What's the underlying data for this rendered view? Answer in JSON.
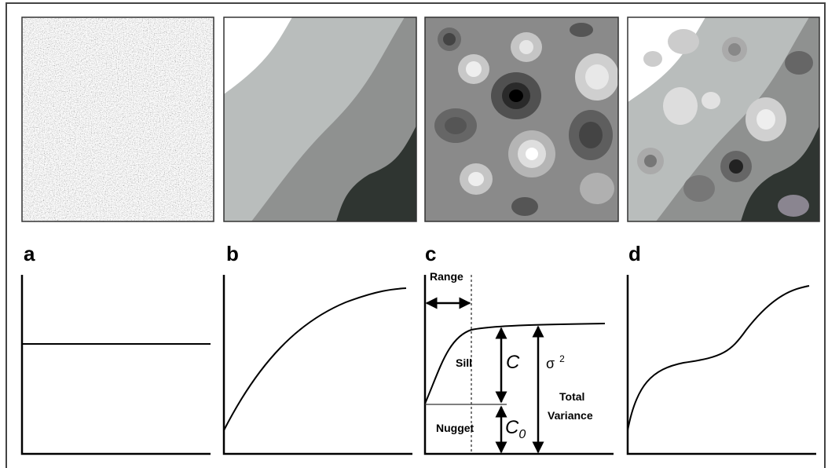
{
  "panels": [
    {
      "label": "a"
    },
    {
      "label": "b"
    },
    {
      "label": "c"
    },
    {
      "label": "d"
    }
  ],
  "variogram_labels": {
    "range": "Range",
    "sill": "Sill",
    "c": "C",
    "sigma": "σ",
    "sigma_exponent": "2",
    "total": "Total",
    "variance": "Variance",
    "nugget": "Nugget",
    "c0_base": "C",
    "c0_subscript": "0"
  }
}
